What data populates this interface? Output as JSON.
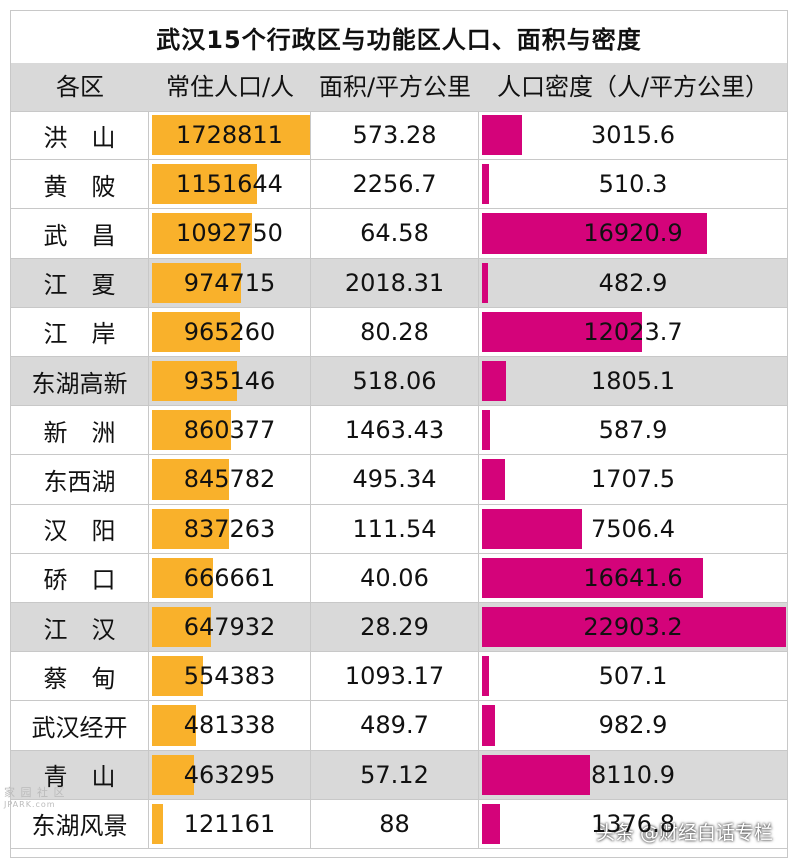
{
  "title": "武汉15个行政区与功能区人口、面积与密度",
  "headers": [
    "各区",
    "常住人口/人",
    "面积/平方公里",
    "人口密度（人/平方公里）"
  ],
  "chart_data": {
    "type": "table",
    "title": "武汉15个行政区与功能区人口、面积与密度",
    "columns": [
      "各区",
      "常住人口/人",
      "面积/平方公里",
      "人口密度（人/平方公里）"
    ],
    "rows": [
      {
        "name": "洪　山",
        "population": 1728811,
        "area": "573.28",
        "density": 3015.6,
        "density_text": "3015.6"
      },
      {
        "name": "黄　陂",
        "population": 1151644,
        "area": "2256.7",
        "density": 510.3,
        "density_text": "510.3"
      },
      {
        "name": "武　昌",
        "population": 1092750,
        "area": "64.58",
        "density": 16920.9,
        "density_text": "16920.9"
      },
      {
        "name": "江　夏",
        "population": 974715,
        "area": "2018.31",
        "density": 482.9,
        "density_text": "482.9"
      },
      {
        "name": "江　岸",
        "population": 965260,
        "area": "80.28",
        "density": 12023.7,
        "density_text": "12023.7"
      },
      {
        "name": "东湖高新",
        "population": 935146,
        "area": "518.06",
        "density": 1805.1,
        "density_text": "1805.1"
      },
      {
        "name": "新　洲",
        "population": 860377,
        "area": "1463.43",
        "density": 587.9,
        "density_text": "587.9"
      },
      {
        "name": "东西湖",
        "population": 845782,
        "area": "495.34",
        "density": 1707.5,
        "density_text": "1707.5"
      },
      {
        "name": "汉　阳",
        "population": 837263,
        "area": "111.54",
        "density": 7506.4,
        "density_text": "7506.4"
      },
      {
        "name": "硚　口",
        "population": 666661,
        "area": "40.06",
        "density": 16641.6,
        "density_text": "16641.6"
      },
      {
        "name": "江　汉",
        "population": 647932,
        "area": "28.29",
        "density": 22903.2,
        "density_text": "22903.2"
      },
      {
        "name": "蔡　甸",
        "population": 554383,
        "area": "1093.17",
        "density": 507.1,
        "density_text": "507.1"
      },
      {
        "name": "武汉经开",
        "population": 481338,
        "area": "489.7",
        "density": 982.9,
        "density_text": "982.9"
      },
      {
        "name": "青　山",
        "population": 463295,
        "area": "57.12",
        "density": 8110.9,
        "density_text": "8110.9"
      },
      {
        "name": "东湖风景",
        "population": 121161,
        "area": "88",
        "density": 1376.8,
        "density_text": "1376.8"
      }
    ],
    "shaded_rows": [
      3,
      5,
      10,
      13
    ],
    "colors": {
      "population_bar": "#f9b12b",
      "density_bar": "#d4037a",
      "shade": "#d9d9d9",
      "grid": "#c8c8c8"
    }
  },
  "watermark": {
    "left_line1": "家 园 社 区",
    "left_line2": "JPARK.com",
    "right": "头条 @财经白话专栏"
  }
}
